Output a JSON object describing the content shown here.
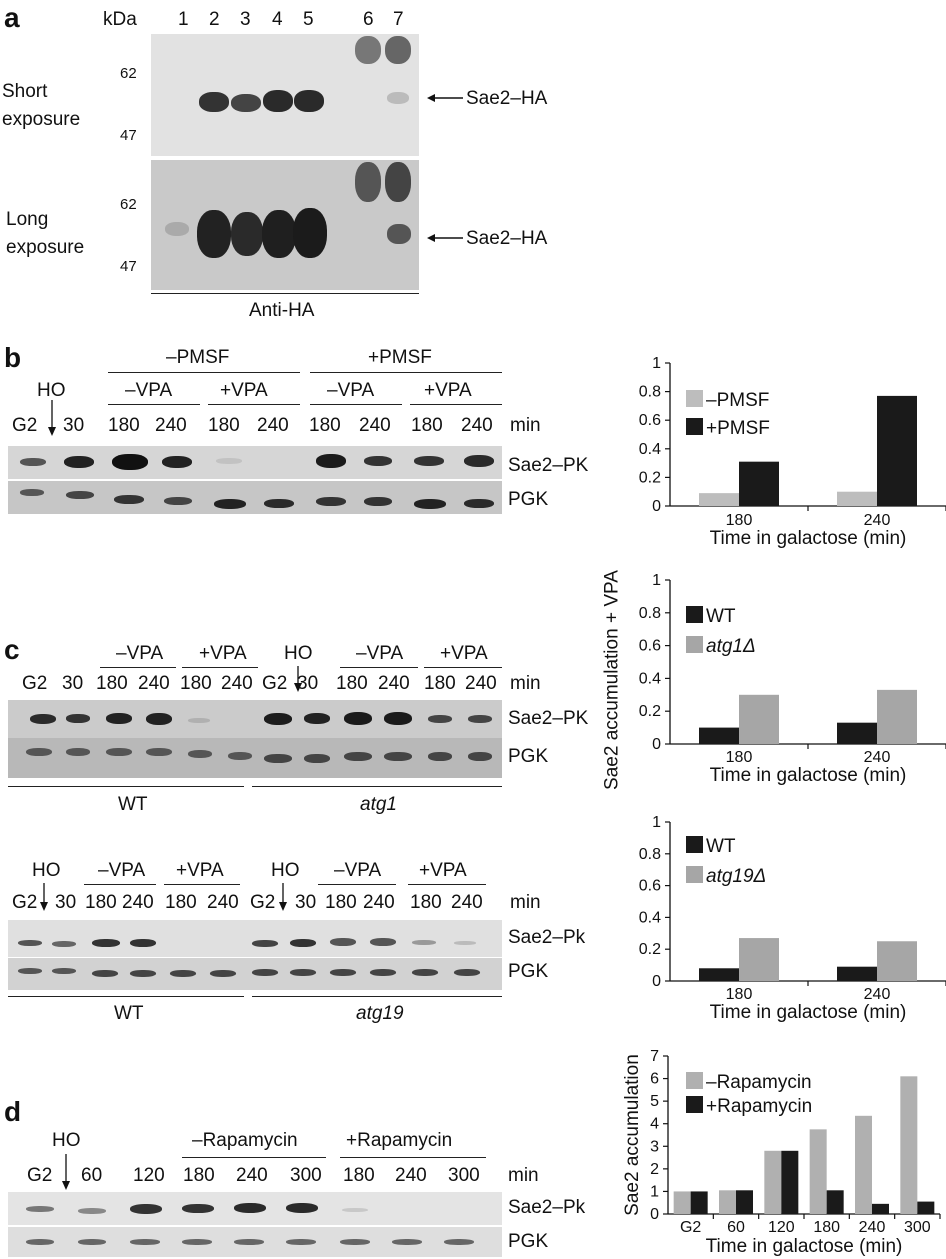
{
  "panel_a": {
    "letter": "a",
    "kda_label": "kDa",
    "lanes": [
      "1",
      "2",
      "3",
      "4",
      "5",
      "6",
      "7"
    ],
    "short_exposure": "Short\nexposure",
    "short_line1": "Short",
    "short_line2": "exposure",
    "long_line1": "Long",
    "long_line2": "exposure",
    "mw_62": "62",
    "mw_47": "47",
    "band_label": "Sae2–HA",
    "antibody": "Anti-HA"
  },
  "panel_b": {
    "letter": "b",
    "pmsf_minus": "–PMSF",
    "pmsf_plus": "+PMSF",
    "ho": "HO",
    "vpa_minus": "–VPA",
    "vpa_plus": "+VPA",
    "lanes": [
      "G2",
      "30",
      "180",
      "240",
      "180",
      "240",
      "180",
      "240",
      "180",
      "240"
    ],
    "min": "min",
    "row1": "Sae2–PK",
    "row2": "PGK"
  },
  "panel_c": {
    "letter": "c",
    "vpa_minus": "–VPA",
    "vpa_plus": "+VPA",
    "ho": "HO",
    "lanes": [
      "G2",
      "30",
      "180",
      "240",
      "180",
      "240",
      "G2",
      "30",
      "180",
      "240",
      "180",
      "240"
    ],
    "min": "min",
    "row1": "Sae2–PK",
    "row2": "PGK",
    "wt": "WT",
    "mutant": "atg1"
  },
  "panel_c2": {
    "ho": "HO",
    "vpa_minus": "–VPA",
    "vpa_plus": "+VPA",
    "lanes": [
      "G2",
      "30",
      "180",
      "240",
      "180",
      "240",
      "G2",
      "30",
      "180",
      "240",
      "180",
      "240"
    ],
    "min": "min",
    "row1": "Sae2–Pk",
    "row2": "PGK",
    "wt": "WT",
    "mutant": "atg19"
  },
  "panel_d": {
    "letter": "d",
    "ho": "HO",
    "rapa_minus": "–Rapamycin",
    "rapa_plus": "+Rapamycin",
    "lanes": [
      "G2",
      "60",
      "120",
      "180",
      "240",
      "300",
      "180",
      "240",
      "300"
    ],
    "min": "min",
    "row1": "Sae2–Pk",
    "row2": "PGK"
  },
  "shared_ylabel": "Sae2 accumulation + VPA",
  "chart_data": [
    {
      "type": "bar",
      "categories": [
        "180",
        "240"
      ],
      "series": [
        {
          "name": "–PMSF",
          "values": [
            0.09,
            0.1
          ],
          "color": "#bdbdbd"
        },
        {
          "name": "+PMSF",
          "values": [
            0.31,
            0.77
          ],
          "color": "#1a1a1a"
        }
      ],
      "xlabel": "Time in galactose (min)",
      "ylim": [
        0,
        1
      ],
      "yticks": [
        "0",
        "0.2",
        "0.4",
        "0.6",
        "0.8",
        "1"
      ],
      "legend": "top-left"
    },
    {
      "type": "bar",
      "categories": [
        "180",
        "240"
      ],
      "series": [
        {
          "name": "WT",
          "values": [
            0.1,
            0.13
          ],
          "color": "#1a1a1a"
        },
        {
          "name": "atg1Δ",
          "values": [
            0.3,
            0.33
          ],
          "color": "#a6a6a6"
        }
      ],
      "xlabel": "Time in galactose (min)",
      "ylim": [
        0,
        1
      ],
      "yticks": [
        "0",
        "0.2",
        "0.4",
        "0.6",
        "0.8",
        "1"
      ],
      "legend": "top-left"
    },
    {
      "type": "bar",
      "categories": [
        "180",
        "240"
      ],
      "series": [
        {
          "name": "WT",
          "values": [
            0.08,
            0.09
          ],
          "color": "#1a1a1a"
        },
        {
          "name": "atg19Δ",
          "values": [
            0.27,
            0.25
          ],
          "color": "#a6a6a6"
        }
      ],
      "xlabel": "Time in galactose (min)",
      "ylim": [
        0,
        1
      ],
      "yticks": [
        "0",
        "0.2",
        "0.4",
        "0.6",
        "0.8",
        "1"
      ],
      "legend": "top-left"
    },
    {
      "type": "bar",
      "categories": [
        "G2",
        "60",
        "120",
        "180",
        "240",
        "300"
      ],
      "series": [
        {
          "name": "–Rapamycin",
          "values": [
            1.0,
            1.05,
            2.8,
            3.75,
            4.35,
            6.1
          ],
          "color": "#b0b0b0"
        },
        {
          "name": "+Rapamycin",
          "values": [
            1.0,
            1.05,
            2.8,
            1.05,
            0.45,
            0.55
          ],
          "color": "#1a1a1a"
        }
      ],
      "xlabel": "Time in galactose (min)",
      "ylabel": "Sae2 accumulation",
      "ylim": [
        0,
        7
      ],
      "yticks": [
        "0",
        "1",
        "2",
        "3",
        "4",
        "5",
        "6",
        "7"
      ],
      "legend": "top-left"
    }
  ]
}
